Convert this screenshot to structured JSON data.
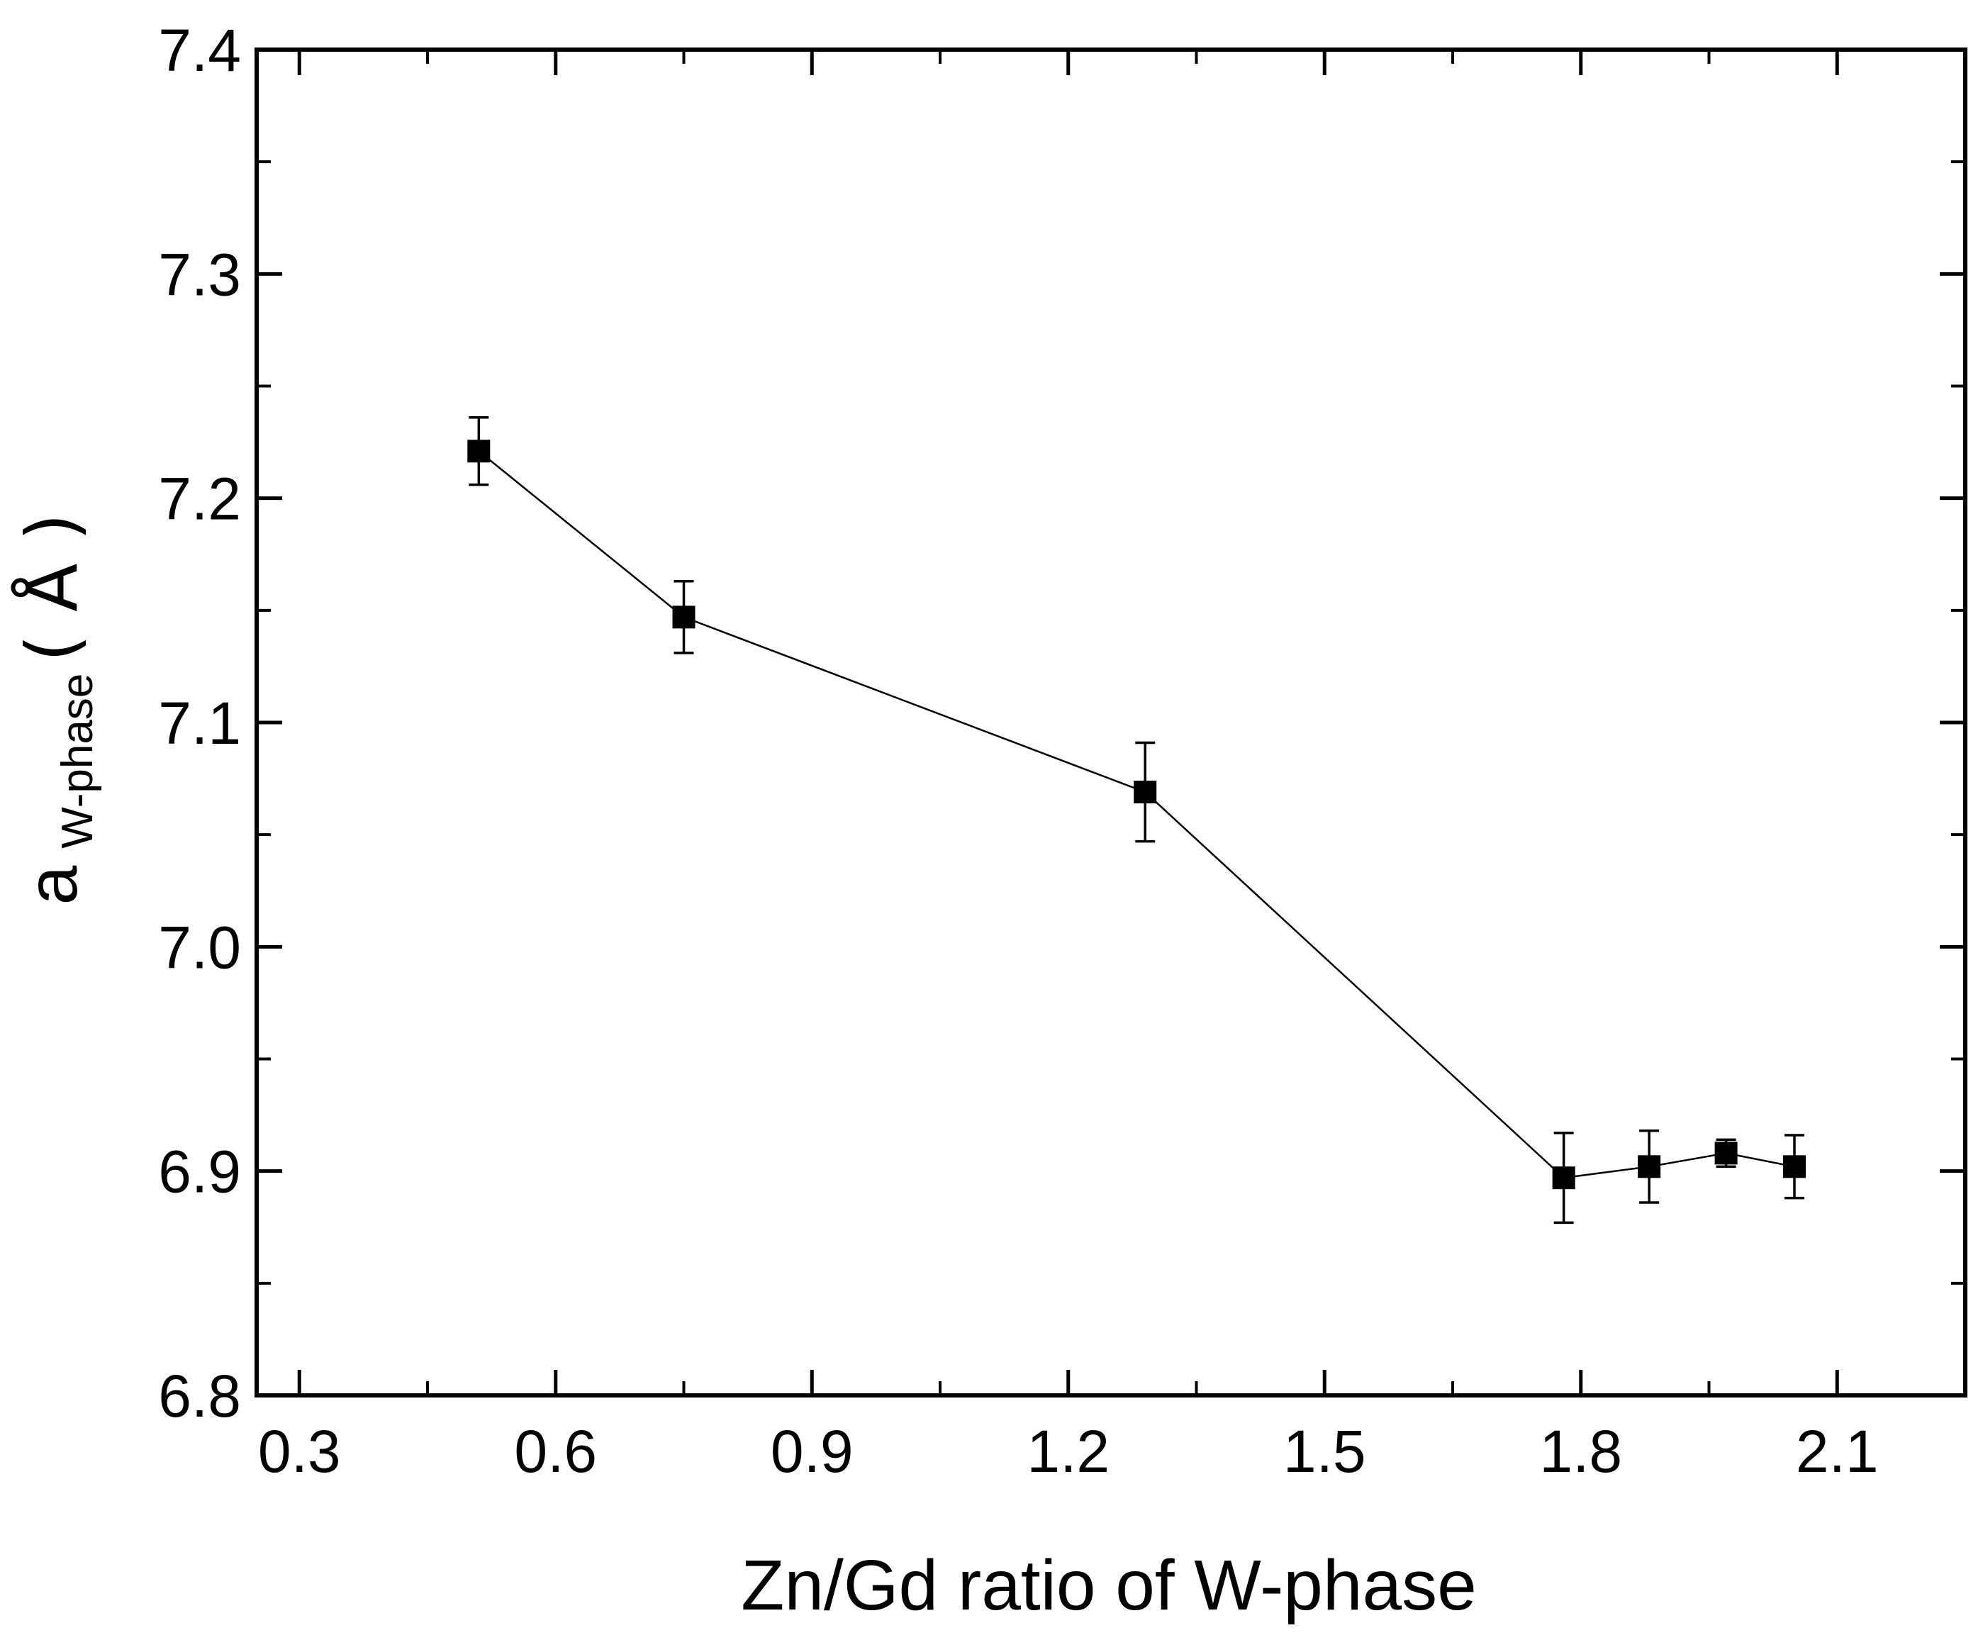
{
  "chart_data": {
    "type": "line",
    "title": "",
    "xlabel": "Zn/Gd ratio of W-phase",
    "ylabel": {
      "main": "a",
      "subscript": "W-phase",
      "unit": "( Å )"
    },
    "xlim": [
      0.25,
      2.25
    ],
    "ylim": [
      6.8,
      7.4
    ],
    "x_ticks": [
      0.3,
      0.6,
      0.9,
      1.2,
      1.5,
      1.8,
      2.1
    ],
    "x_tick_labels": [
      "0.3",
      "0.6",
      "0.9",
      "1.2",
      "1.5",
      "1.8",
      "2.1"
    ],
    "y_ticks": [
      6.8,
      6.9,
      7.0,
      7.1,
      7.2,
      7.3,
      7.4
    ],
    "y_tick_labels": [
      "6.8",
      "6.9",
      "7.0",
      "7.1",
      "7.2",
      "7.3",
      "7.4"
    ],
    "grid": false,
    "series": [
      {
        "name": "a W-phase",
        "marker": "square",
        "color": "#000000",
        "x": [
          0.51,
          0.75,
          1.29,
          1.78,
          1.88,
          1.97,
          2.05
        ],
        "y": [
          7.221,
          7.147,
          7.069,
          6.897,
          6.902,
          6.908,
          6.902
        ],
        "error": [
          0.015,
          0.016,
          0.022,
          0.02,
          0.016,
          0.006,
          0.014
        ]
      }
    ]
  }
}
